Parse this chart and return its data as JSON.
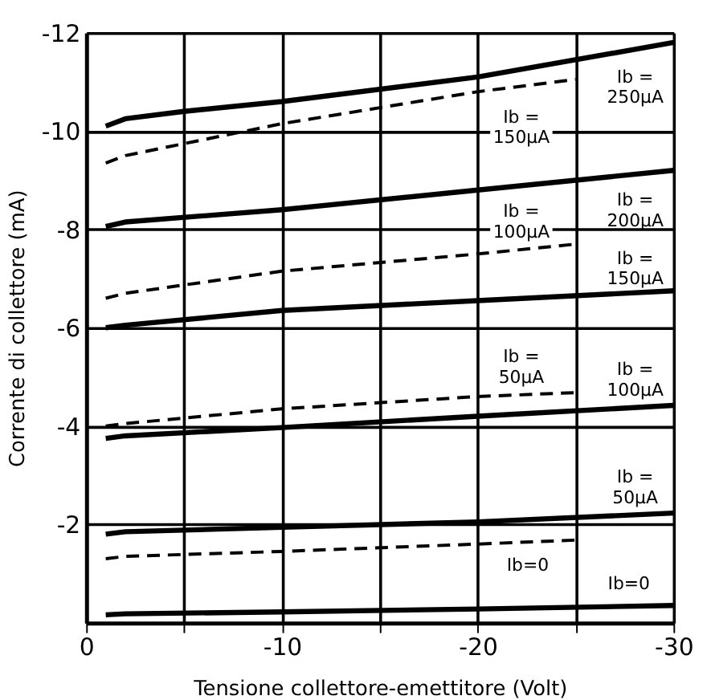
{
  "chart_data": {
    "type": "line",
    "xlabel": "Tensione   collettore-emettitore   (Volt)",
    "ylabel": "Corrente di collettore (mA)",
    "xlim": [
      0,
      -30
    ],
    "ylim": [
      0,
      -12
    ],
    "xticks": [
      0,
      {
        "value": -5,
        "label": null
      },
      -10,
      {
        "value": -15,
        "label": null
      },
      -20,
      {
        "value": -25,
        "label": null
      },
      -30
    ],
    "yticks": [
      -12,
      -10,
      -8,
      -6,
      -4,
      -2
    ],
    "grid": true,
    "series": [
      {
        "name": "Ib =\n250µA",
        "color": "#000000",
        "line_style": "solid",
        "x": [
          -1,
          -2,
          -5,
          -10,
          -20,
          -30
        ],
        "values": [
          -10.1,
          -10.25,
          -10.4,
          -10.6,
          -11.1,
          -11.8
        ]
      },
      {
        "name": "Ib =\n150µA",
        "color": "#000000",
        "line_style": "dashed",
        "x": [
          -1,
          -2,
          -10,
          -20,
          -25
        ],
        "values": [
          -9.35,
          -9.5,
          -10.15,
          -10.8,
          -11.05
        ]
      },
      {
        "name": "Ib =\n200µA",
        "color": "#000000",
        "line_style": "solid",
        "x": [
          -1,
          -2,
          -10,
          -20,
          -30
        ],
        "values": [
          -8.06,
          -8.15,
          -8.4,
          -8.8,
          -9.2
        ]
      },
      {
        "name": "Ib =\n100µA",
        "color": "#000000",
        "line_style": "dashed",
        "x": [
          -1,
          -2,
          -10,
          -20,
          -25
        ],
        "values": [
          -6.6,
          -6.7,
          -7.15,
          -7.5,
          -7.7
        ]
      },
      {
        "name": "Ib =\n150µA",
        "color": "#000000",
        "line_style": "solid",
        "x": [
          -1,
          -2,
          -10,
          -20,
          -30
        ],
        "values": [
          -6.0,
          -6.05,
          -6.35,
          -6.55,
          -6.75
        ]
      },
      {
        "name": "Ib =\n50µA",
        "color": "#000000",
        "line_style": "dashed",
        "x": [
          -1,
          -2,
          -10,
          -20,
          -25
        ],
        "values": [
          -4.0,
          -4.05,
          -4.35,
          -4.6,
          -4.68
        ]
      },
      {
        "name": "Ib =\n100µA",
        "color": "#000000",
        "line_style": "solid",
        "x": [
          -1,
          -2,
          -10,
          -20,
          -30
        ],
        "values": [
          -3.75,
          -3.8,
          -3.97,
          -4.2,
          -4.42
        ]
      },
      {
        "name": "Ib =\n50µA",
        "color": "#000000",
        "line_style": "solid",
        "x": [
          -1,
          -2,
          -10,
          -20,
          -30
        ],
        "values": [
          -1.8,
          -1.85,
          -1.94,
          -2.05,
          -2.23
        ]
      },
      {
        "name": "Ib=0",
        "color": "#000000",
        "line_style": "dashed",
        "x": [
          -1,
          -2,
          -10,
          -20,
          -25
        ],
        "values": [
          -1.3,
          -1.35,
          -1.45,
          -1.6,
          -1.68
        ]
      },
      {
        "name": "Ib=0",
        "color": "#000000",
        "line_style": "solid",
        "x": [
          -1,
          -2,
          -10,
          -20,
          -30
        ],
        "values": [
          -0.16,
          -0.18,
          -0.22,
          -0.28,
          -0.35
        ]
      }
    ]
  }
}
